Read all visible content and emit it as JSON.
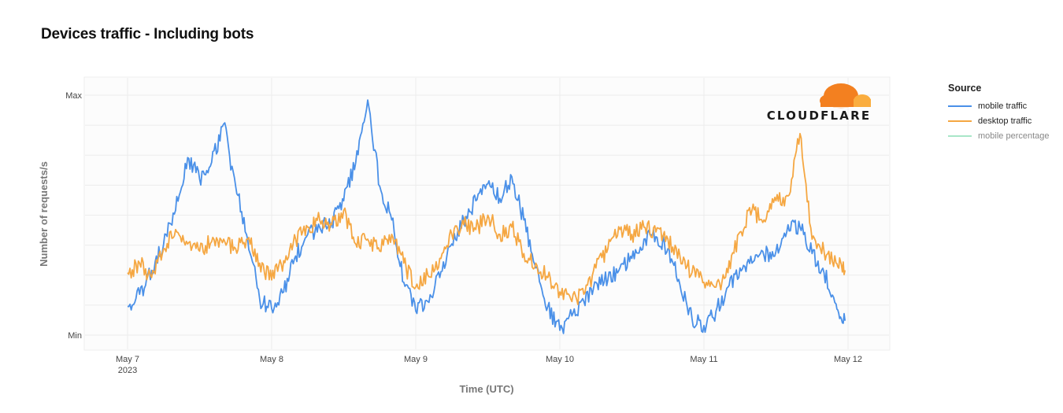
{
  "chart_data": {
    "type": "line",
    "title": "Devices traffic - Including bots",
    "xlabel": "Time (UTC)",
    "ylabel": "Number of requests/s",
    "x_range": [
      "2023-05-07T00:00",
      "2023-05-12T00:00"
    ],
    "y_ticks": [
      "Max",
      "Min"
    ],
    "y_range": [
      0,
      1
    ],
    "x_ticks": [
      {
        "date": "2023-05-07",
        "label": "May 7",
        "sublabel": "2023"
      },
      {
        "date": "2023-05-08",
        "label": "May 8",
        "sublabel": ""
      },
      {
        "date": "2023-05-09",
        "label": "May 9",
        "sublabel": ""
      },
      {
        "date": "2023-05-10",
        "label": "May 10",
        "sublabel": ""
      },
      {
        "date": "2023-05-11",
        "label": "May 11",
        "sublabel": ""
      },
      {
        "date": "2023-05-12",
        "label": "May 12",
        "sublabel": ""
      }
    ],
    "legend": {
      "title": "Source",
      "position": "top-right"
    },
    "series": [
      {
        "name": "mobile traffic",
        "color": "#4a90e8",
        "points": [
          [
            "2023-05-07T00:00",
            0.12
          ],
          [
            "2023-05-07T02:00",
            0.17
          ],
          [
            "2023-05-07T04:00",
            0.27
          ],
          [
            "2023-05-07T06:00",
            0.38
          ],
          [
            "2023-05-07T08:00",
            0.52
          ],
          [
            "2023-05-07T10:00",
            0.74
          ],
          [
            "2023-05-07T12:00",
            0.65
          ],
          [
            "2023-05-07T14:00",
            0.72
          ],
          [
            "2023-05-07T16:00",
            0.88
          ],
          [
            "2023-05-07T18:00",
            0.62
          ],
          [
            "2023-05-07T20:00",
            0.4
          ],
          [
            "2023-05-07T22:00",
            0.15
          ],
          [
            "2023-05-08T00:00",
            0.11
          ],
          [
            "2023-05-08T02:00",
            0.18
          ],
          [
            "2023-05-08T04:00",
            0.33
          ],
          [
            "2023-05-08T06:00",
            0.42
          ],
          [
            "2023-05-08T08:00",
            0.45
          ],
          [
            "2023-05-08T10:00",
            0.47
          ],
          [
            "2023-05-08T12:00",
            0.56
          ],
          [
            "2023-05-08T14:00",
            0.72
          ],
          [
            "2023-05-08T16:00",
            0.98
          ],
          [
            "2023-05-08T18:00",
            0.62
          ],
          [
            "2023-05-08T20:00",
            0.48
          ],
          [
            "2023-05-08T22:00",
            0.22
          ],
          [
            "2023-05-09T00:00",
            0.1
          ],
          [
            "2023-05-09T02:00",
            0.14
          ],
          [
            "2023-05-09T04:00",
            0.24
          ],
          [
            "2023-05-09T06:00",
            0.38
          ],
          [
            "2023-05-09T08:00",
            0.48
          ],
          [
            "2023-05-09T10:00",
            0.56
          ],
          [
            "2023-05-09T12:00",
            0.63
          ],
          [
            "2023-05-09T14:00",
            0.57
          ],
          [
            "2023-05-09T16:00",
            0.66
          ],
          [
            "2023-05-09T18:00",
            0.48
          ],
          [
            "2023-05-09T20:00",
            0.28
          ],
          [
            "2023-05-09T22:00",
            0.12
          ],
          [
            "2023-05-10T00:00",
            0.02
          ],
          [
            "2023-05-10T02:00",
            0.08
          ],
          [
            "2023-05-10T04:00",
            0.14
          ],
          [
            "2023-05-10T06:00",
            0.22
          ],
          [
            "2023-05-10T08:00",
            0.23
          ],
          [
            "2023-05-10T10:00",
            0.28
          ],
          [
            "2023-05-10T12:00",
            0.32
          ],
          [
            "2023-05-10T14:00",
            0.4
          ],
          [
            "2023-05-10T16:00",
            0.41
          ],
          [
            "2023-05-10T18:00",
            0.36
          ],
          [
            "2023-05-10T20:00",
            0.21
          ],
          [
            "2023-05-10T22:00",
            0.07
          ],
          [
            "2023-05-11T00:00",
            0.04
          ],
          [
            "2023-05-11T02:00",
            0.1
          ],
          [
            "2023-05-11T04:00",
            0.2
          ],
          [
            "2023-05-11T06:00",
            0.28
          ],
          [
            "2023-05-11T08:00",
            0.3
          ],
          [
            "2023-05-11T10:00",
            0.33
          ],
          [
            "2023-05-11T12:00",
            0.35
          ],
          [
            "2023-05-11T14:00",
            0.46
          ],
          [
            "2023-05-11T16:00",
            0.45
          ],
          [
            "2023-05-11T18:00",
            0.34
          ],
          [
            "2023-05-11T20:00",
            0.26
          ],
          [
            "2023-05-11T22:00",
            0.13
          ],
          [
            "2023-05-11T23:30",
            0.06
          ]
        ]
      },
      {
        "name": "desktop traffic",
        "color": "#f5a742",
        "points": [
          [
            "2023-05-07T00:00",
            0.26
          ],
          [
            "2023-05-07T02:00",
            0.3
          ],
          [
            "2023-05-07T04:00",
            0.24
          ],
          [
            "2023-05-07T06:00",
            0.36
          ],
          [
            "2023-05-07T08:00",
            0.44
          ],
          [
            "2023-05-07T10:00",
            0.38
          ],
          [
            "2023-05-07T12:00",
            0.35
          ],
          [
            "2023-05-07T14:00",
            0.39
          ],
          [
            "2023-05-07T16:00",
            0.4
          ],
          [
            "2023-05-07T18:00",
            0.36
          ],
          [
            "2023-05-07T20:00",
            0.4
          ],
          [
            "2023-05-07T22:00",
            0.3
          ],
          [
            "2023-05-08T00:00",
            0.23
          ],
          [
            "2023-05-08T02:00",
            0.31
          ],
          [
            "2023-05-08T04:00",
            0.4
          ],
          [
            "2023-05-08T06:00",
            0.45
          ],
          [
            "2023-05-08T08:00",
            0.48
          ],
          [
            "2023-05-08T10:00",
            0.46
          ],
          [
            "2023-05-08T12:00",
            0.52
          ],
          [
            "2023-05-08T14:00",
            0.38
          ],
          [
            "2023-05-08T16:00",
            0.4
          ],
          [
            "2023-05-08T18:00",
            0.35
          ],
          [
            "2023-05-08T20:00",
            0.42
          ],
          [
            "2023-05-08T22:00",
            0.3
          ],
          [
            "2023-05-09T00:00",
            0.2
          ],
          [
            "2023-05-09T02:00",
            0.25
          ],
          [
            "2023-05-09T04:00",
            0.32
          ],
          [
            "2023-05-09T06:00",
            0.42
          ],
          [
            "2023-05-09T08:00",
            0.46
          ],
          [
            "2023-05-09T10:00",
            0.44
          ],
          [
            "2023-05-09T12:00",
            0.5
          ],
          [
            "2023-05-09T14:00",
            0.42
          ],
          [
            "2023-05-09T16:00",
            0.45
          ],
          [
            "2023-05-09T18:00",
            0.34
          ],
          [
            "2023-05-09T20:00",
            0.3
          ],
          [
            "2023-05-09T22:00",
            0.24
          ],
          [
            "2023-05-10T00:00",
            0.18
          ],
          [
            "2023-05-10T02:00",
            0.14
          ],
          [
            "2023-05-10T04:00",
            0.17
          ],
          [
            "2023-05-10T06:00",
            0.28
          ],
          [
            "2023-05-10T08:00",
            0.36
          ],
          [
            "2023-05-10T10:00",
            0.44
          ],
          [
            "2023-05-10T12:00",
            0.42
          ],
          [
            "2023-05-10T14:00",
            0.45
          ],
          [
            "2023-05-10T16:00",
            0.43
          ],
          [
            "2023-05-10T18:00",
            0.4
          ],
          [
            "2023-05-10T20:00",
            0.33
          ],
          [
            "2023-05-10T22:00",
            0.26
          ],
          [
            "2023-05-11T00:00",
            0.22
          ],
          [
            "2023-05-11T02:00",
            0.2
          ],
          [
            "2023-05-11T04:00",
            0.26
          ],
          [
            "2023-05-11T06:00",
            0.43
          ],
          [
            "2023-05-11T08:00",
            0.52
          ],
          [
            "2023-05-11T10:00",
            0.48
          ],
          [
            "2023-05-11T12:00",
            0.56
          ],
          [
            "2023-05-11T14:00",
            0.58
          ],
          [
            "2023-05-11T16:00",
            0.84
          ],
          [
            "2023-05-11T18:00",
            0.4
          ],
          [
            "2023-05-11T20:00",
            0.35
          ],
          [
            "2023-05-11T22:00",
            0.3
          ],
          [
            "2023-05-11T23:30",
            0.27
          ]
        ]
      },
      {
        "name": "mobile percentage",
        "color": "#a8e6c8",
        "visible": false,
        "points": []
      }
    ]
  },
  "logo": {
    "text": "CLOUDFLARE",
    "color": "#f38020",
    "color_light": "#faad3f"
  }
}
